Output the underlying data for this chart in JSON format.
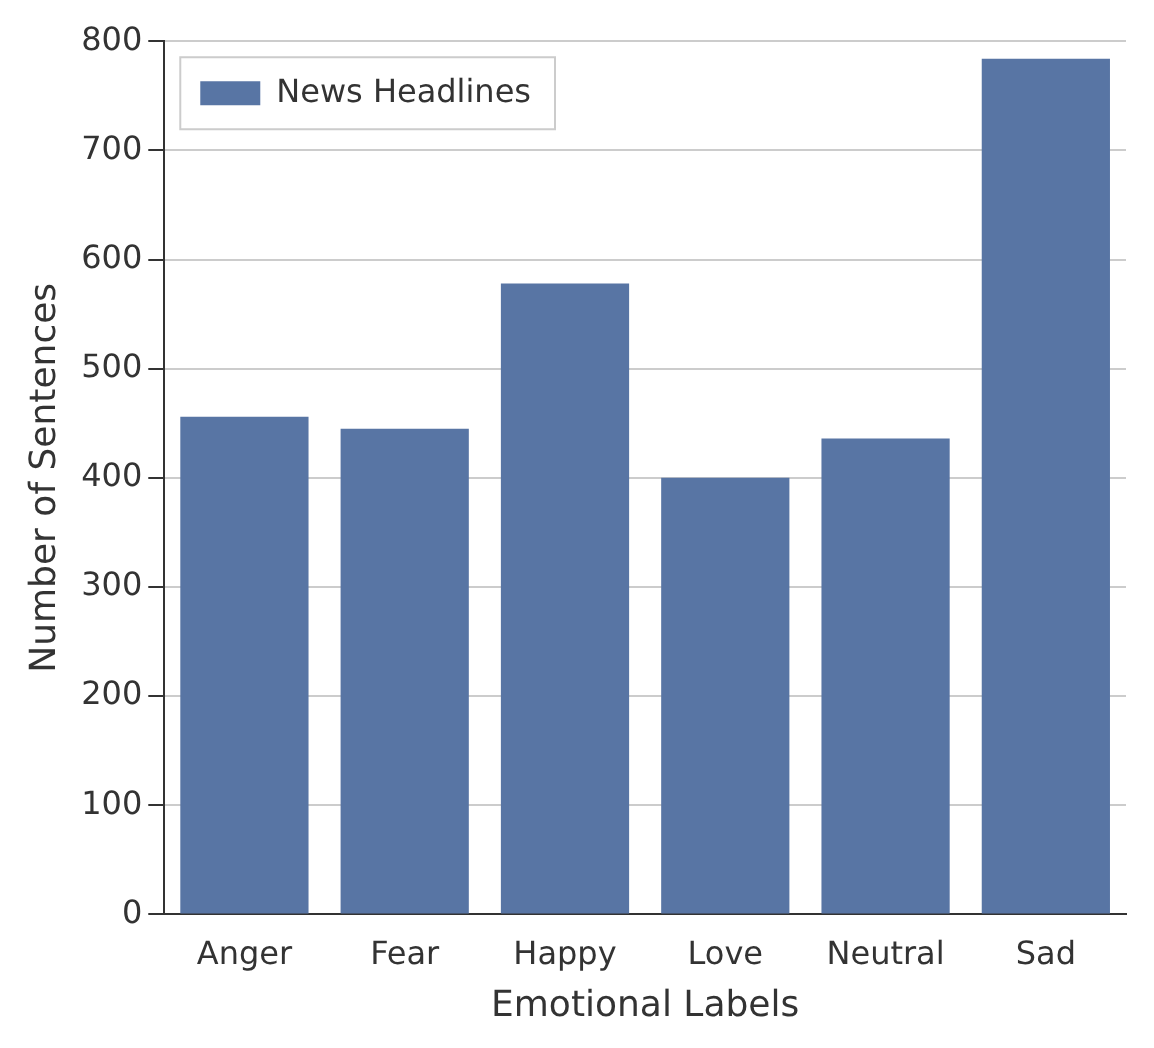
{
  "chart_data": {
    "type": "bar",
    "xlabel": "Emotional Labels",
    "ylabel": "Number of Sentences",
    "categories": [
      "Anger",
      "Fear",
      "Happy",
      "Love",
      "Neutral",
      "Sad"
    ],
    "series": [
      {
        "name": "News Headlines",
        "color": "#5875a4",
        "values": [
          456,
          445,
          578,
          400,
          436,
          784
        ]
      }
    ],
    "ylim": [
      0,
      800
    ],
    "yticks": [
      0,
      100,
      200,
      300,
      400,
      500,
      600,
      700,
      800
    ],
    "grid": "y",
    "legend": "top left"
  }
}
